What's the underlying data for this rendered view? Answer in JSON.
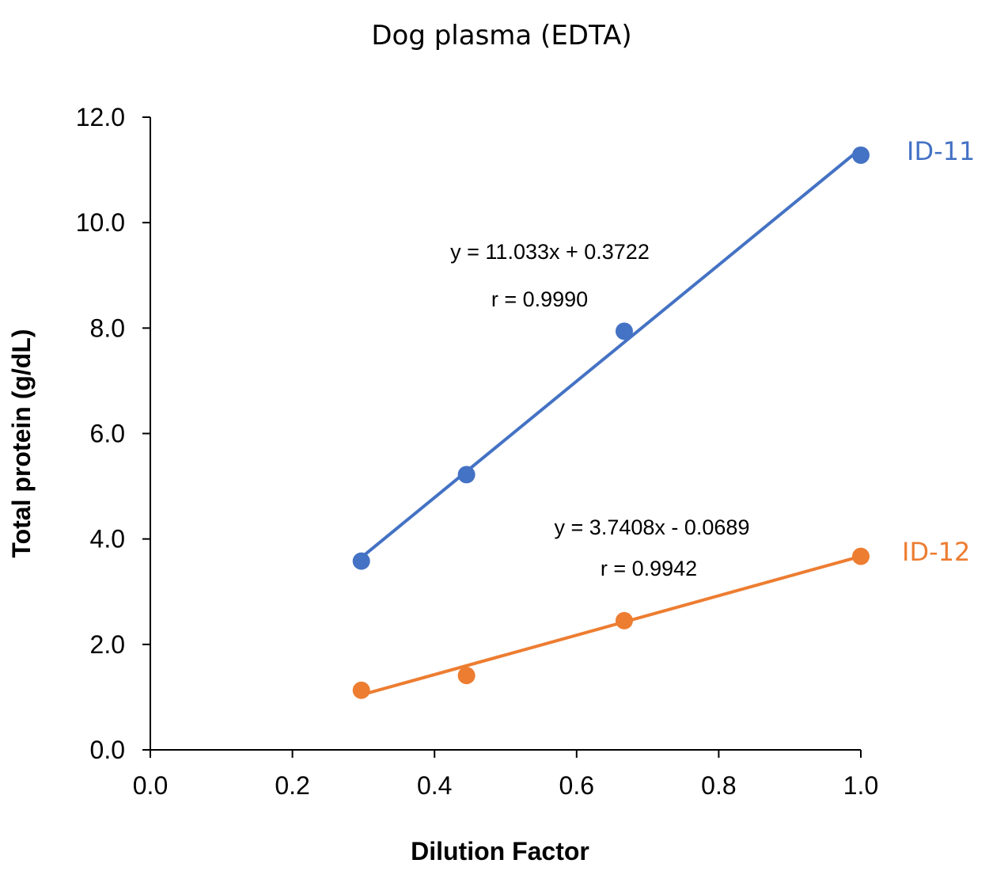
{
  "chart_data": {
    "type": "scatter",
    "title": "Dog plasma (EDTA)",
    "xlabel": "Dilution Factor",
    "ylabel": "Total protein (g/dL)",
    "xlim": [
      0,
      1.0
    ],
    "ylim": [
      0,
      12.0
    ],
    "x_ticks": [
      "0.0",
      "0.2",
      "0.4",
      "0.6",
      "0.8",
      "1.0"
    ],
    "y_ticks": [
      "0.0",
      "2.0",
      "4.0",
      "6.0",
      "8.0",
      "10.0",
      "12.0"
    ],
    "grid": false,
    "legend": "none",
    "series": [
      {
        "name": "ID-11",
        "color": "#4472C4",
        "points": [
          {
            "x": 0.297,
            "y": 3.58
          },
          {
            "x": 0.445,
            "y": 5.22
          },
          {
            "x": 0.667,
            "y": 7.94
          },
          {
            "x": 1.0,
            "y": 11.28
          }
        ],
        "trendline": {
          "slope": 11.033,
          "intercept": 0.3722
        },
        "equation": "y = 11.033x + 0.3722",
        "r_text": "r = 0.9990"
      },
      {
        "name": "ID-12",
        "color": "#ED7D31",
        "points": [
          {
            "x": 0.297,
            "y": 1.13
          },
          {
            "x": 0.445,
            "y": 1.41
          },
          {
            "x": 0.667,
            "y": 2.45
          },
          {
            "x": 1.0,
            "y": 3.67
          }
        ],
        "trendline": {
          "slope": 3.7408,
          "intercept": -0.0689
        },
        "equation": "y = 3.7408x - 0.0689",
        "r_text": "r = 0.9942"
      }
    ]
  }
}
